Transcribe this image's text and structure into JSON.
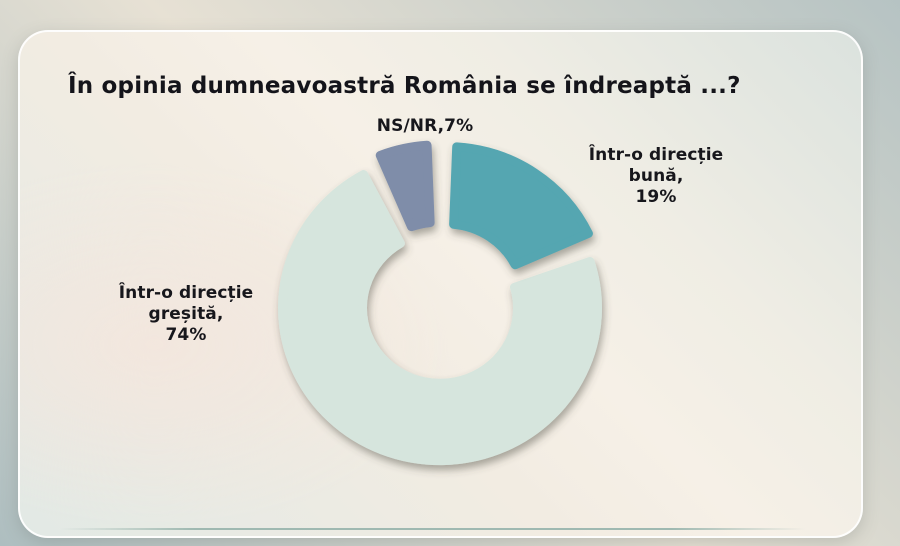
{
  "chart_data": {
    "type": "pie",
    "variant": "donut",
    "title": "În opinia dumneavoastră România se îndreaptă ...?",
    "unit": "%",
    "direction": "clockwise",
    "start_angle_deg": 0,
    "inner_radius_ratio": 0.45,
    "slices": [
      {
        "name": "Într-o direcție bună",
        "value": 19,
        "color": "#54a6b1",
        "exploded": true,
        "label_lines": [
          "Într-o direcție",
          "bună,",
          "19%"
        ]
      },
      {
        "name": "Într-o direcție greșită",
        "value": 74,
        "color": "#d6e5dd",
        "exploded": false,
        "label_lines": [
          "Într-o direcție",
          "greșită,",
          "74%"
        ]
      },
      {
        "name": "NS/NR",
        "value": 7,
        "color": "#7f8da9",
        "exploded": true,
        "label_lines": [
          "NS/NR,7%"
        ]
      }
    ]
  },
  "colors": {
    "background_warm": "#e7e1d4",
    "background_cool": "#aebec0",
    "card_warm": "#f6f0e7",
    "card_cool": "#dbe2de",
    "text": "#14141a",
    "bottom_accent": "#9fb9b1"
  }
}
